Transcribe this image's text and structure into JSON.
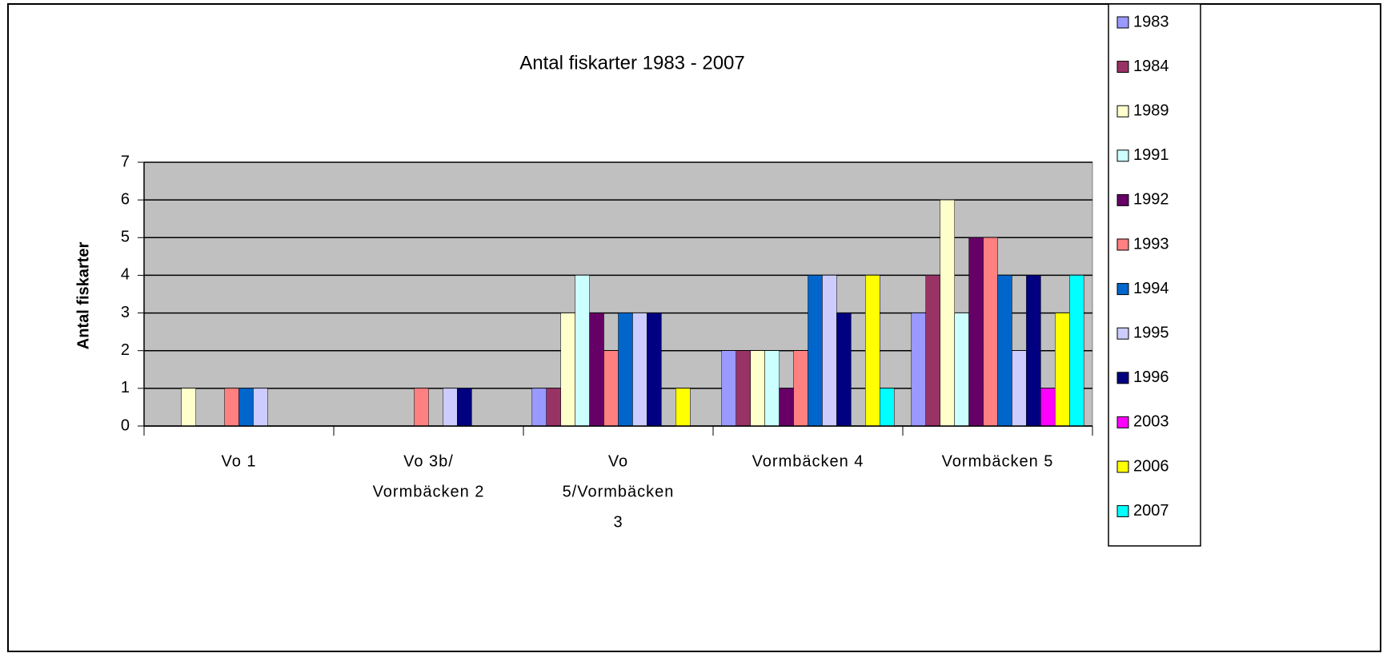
{
  "chart_data": {
    "type": "bar",
    "title": "Antal fiskarter 1983 - 2007",
    "y_label": "Antal fiskarter",
    "categories": [
      [
        "Vo 1"
      ],
      [
        "Vo 3b/",
        "Vormbäcken 2"
      ],
      [
        "Vo",
        "5/Vormbäcken",
        "3"
      ],
      [
        "Vormbäcken 4"
      ],
      [
        "Vormbäcken 5"
      ]
    ],
    "series": [
      {
        "name": "1983",
        "color": "#9999ff",
        "values": [
          0,
          0,
          1,
          2,
          3
        ]
      },
      {
        "name": "1984",
        "color": "#993366",
        "values": [
          0,
          0,
          1,
          2,
          4
        ]
      },
      {
        "name": "1989",
        "color": "#ffffcc",
        "values": [
          1,
          0,
          3,
          2,
          6
        ]
      },
      {
        "name": "1991",
        "color": "#ccffff",
        "values": [
          0,
          0,
          4,
          2,
          3
        ]
      },
      {
        "name": "1992",
        "color": "#660066",
        "values": [
          0,
          0,
          3,
          1,
          5
        ]
      },
      {
        "name": "1993",
        "color": "#ff8080",
        "values": [
          1,
          1,
          2,
          2,
          5
        ]
      },
      {
        "name": "1994",
        "color": "#0066cc",
        "values": [
          1,
          0,
          3,
          4,
          4
        ]
      },
      {
        "name": "1995",
        "color": "#ccccff",
        "values": [
          1,
          1,
          3,
          4,
          2
        ]
      },
      {
        "name": "1996",
        "color": "#000080",
        "values": [
          0,
          1,
          3,
          3,
          4
        ]
      },
      {
        "name": "2003",
        "color": "#ff00ff",
        "values": [
          0,
          0,
          0,
          0,
          1
        ]
      },
      {
        "name": "2006",
        "color": "#ffff00",
        "values": [
          0,
          0,
          1,
          4,
          3
        ]
      },
      {
        "name": "2007",
        "color": "#00ffff",
        "values": [
          0,
          0,
          0,
          1,
          4
        ]
      }
    ],
    "ylim": [
      0,
      7
    ],
    "yticks": [
      0,
      1,
      2,
      3,
      4,
      5,
      6,
      7
    ],
    "grid": true,
    "legend": "right"
  }
}
